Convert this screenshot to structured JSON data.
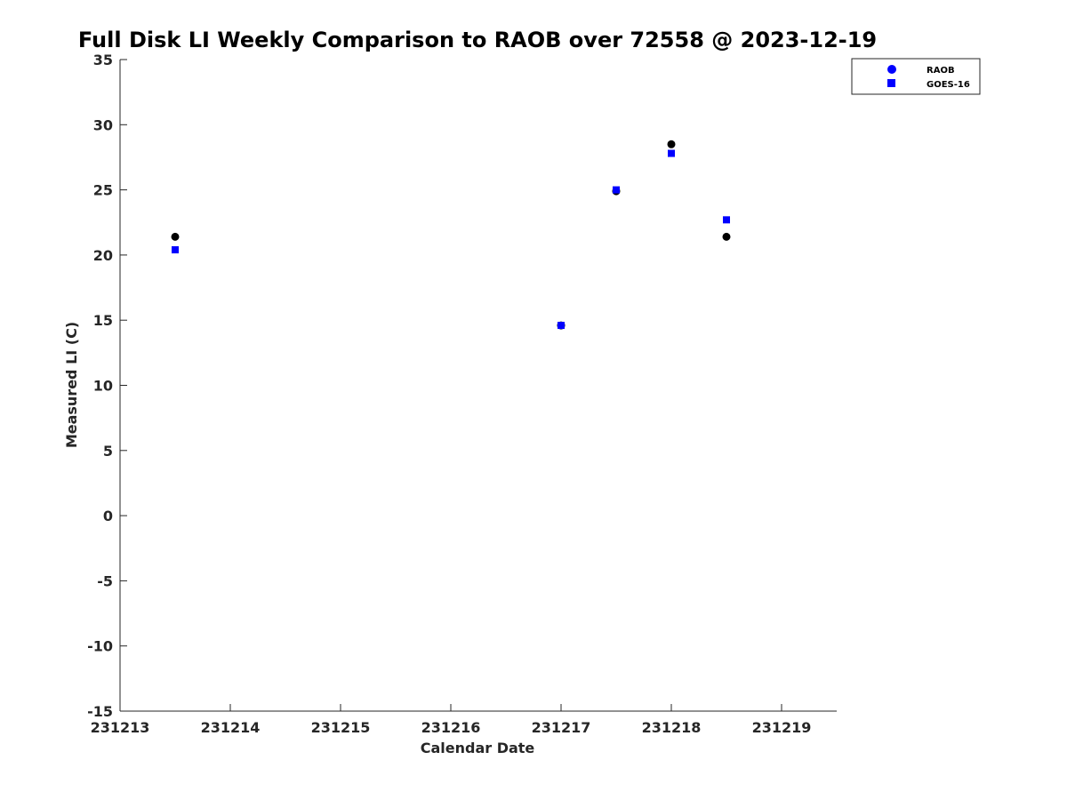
{
  "chart_data": {
    "type": "scatter",
    "title": "Full Disk LI Weekly Comparison to RAOB over 72558 @ 2023-12-19",
    "xlabel": "Calendar Date",
    "ylabel": "Measured LI (C)",
    "xlim": [
      0,
      6.5
    ],
    "ylim": [
      -15,
      35
    ],
    "x_ticks": [
      0,
      1,
      2,
      3,
      4,
      5,
      6
    ],
    "x_tick_labels": [
      "231213",
      "231214",
      "231215",
      "231216",
      "231217",
      "231218",
      "231219"
    ],
    "y_ticks": [
      -15,
      -10,
      -5,
      0,
      5,
      10,
      15,
      20,
      25,
      30,
      35
    ],
    "y_tick_labels": [
      "-15",
      "-10",
      "-5",
      "0",
      "5",
      "10",
      "15",
      "20",
      "25",
      "30",
      "35"
    ],
    "grid": false,
    "legend_position": "top-right",
    "series": [
      {
        "name": "RAOB",
        "marker": "circle",
        "color": "#000000",
        "legend_color": "#0000ff",
        "x": [
          0.5,
          4.0,
          4.5,
          5.0,
          5.5
        ],
        "y": [
          21.4,
          14.6,
          24.9,
          28.5,
          21.4
        ]
      },
      {
        "name": "GOES-16",
        "marker": "square",
        "color": "#0000ff",
        "legend_color": "#0000ff",
        "x": [
          0.5,
          4.0,
          4.5,
          5.0,
          5.5
        ],
        "y": [
          20.4,
          14.6,
          25.0,
          27.8,
          22.7
        ]
      }
    ]
  }
}
